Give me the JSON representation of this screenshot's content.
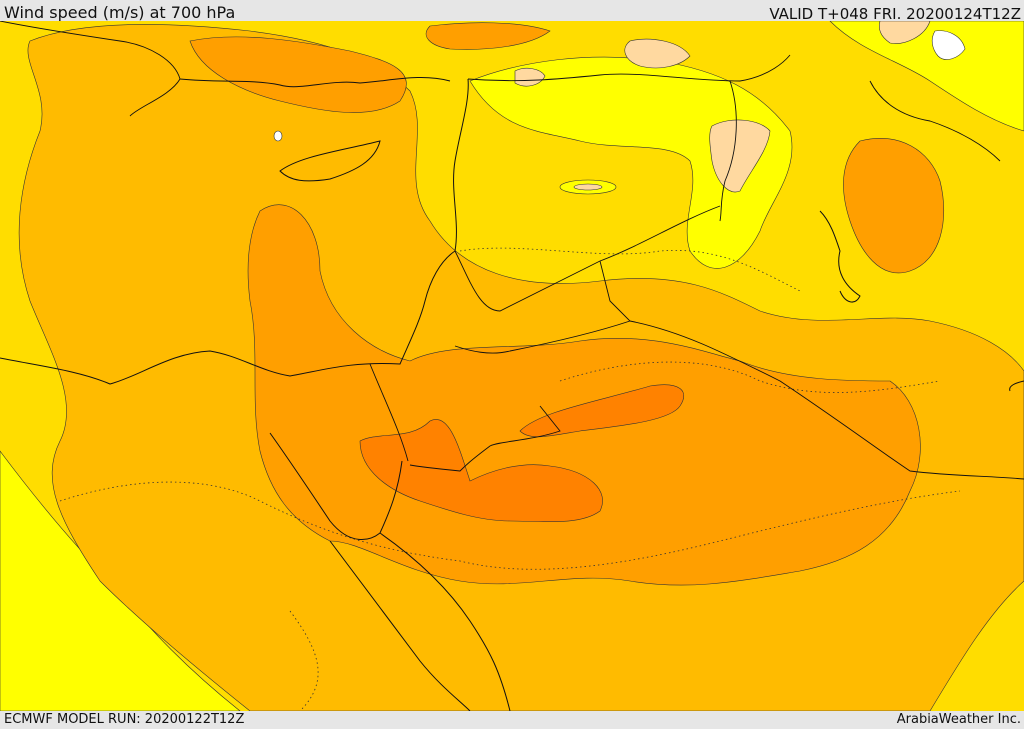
{
  "header": {
    "title": "Wind speed (m/s) at 700 hPa",
    "valid": "VALID T+048 FRI. 20200124T12Z"
  },
  "footer": {
    "model_run": "ECMWF MODEL RUN: 20200122T12Z",
    "credit": "ArabiaWeather Inc."
  },
  "map": {
    "variable": "Wind speed",
    "units": "m/s",
    "level": "700 hPa",
    "colors": {
      "light_yellow": "#ffff00",
      "yellow": "#ffdd00",
      "gold": "#ffbb00",
      "orange": "#ff9f00",
      "dark_orange": "#ff8200",
      "peach": "#ffd9a0",
      "white": "#ffffff"
    }
  }
}
